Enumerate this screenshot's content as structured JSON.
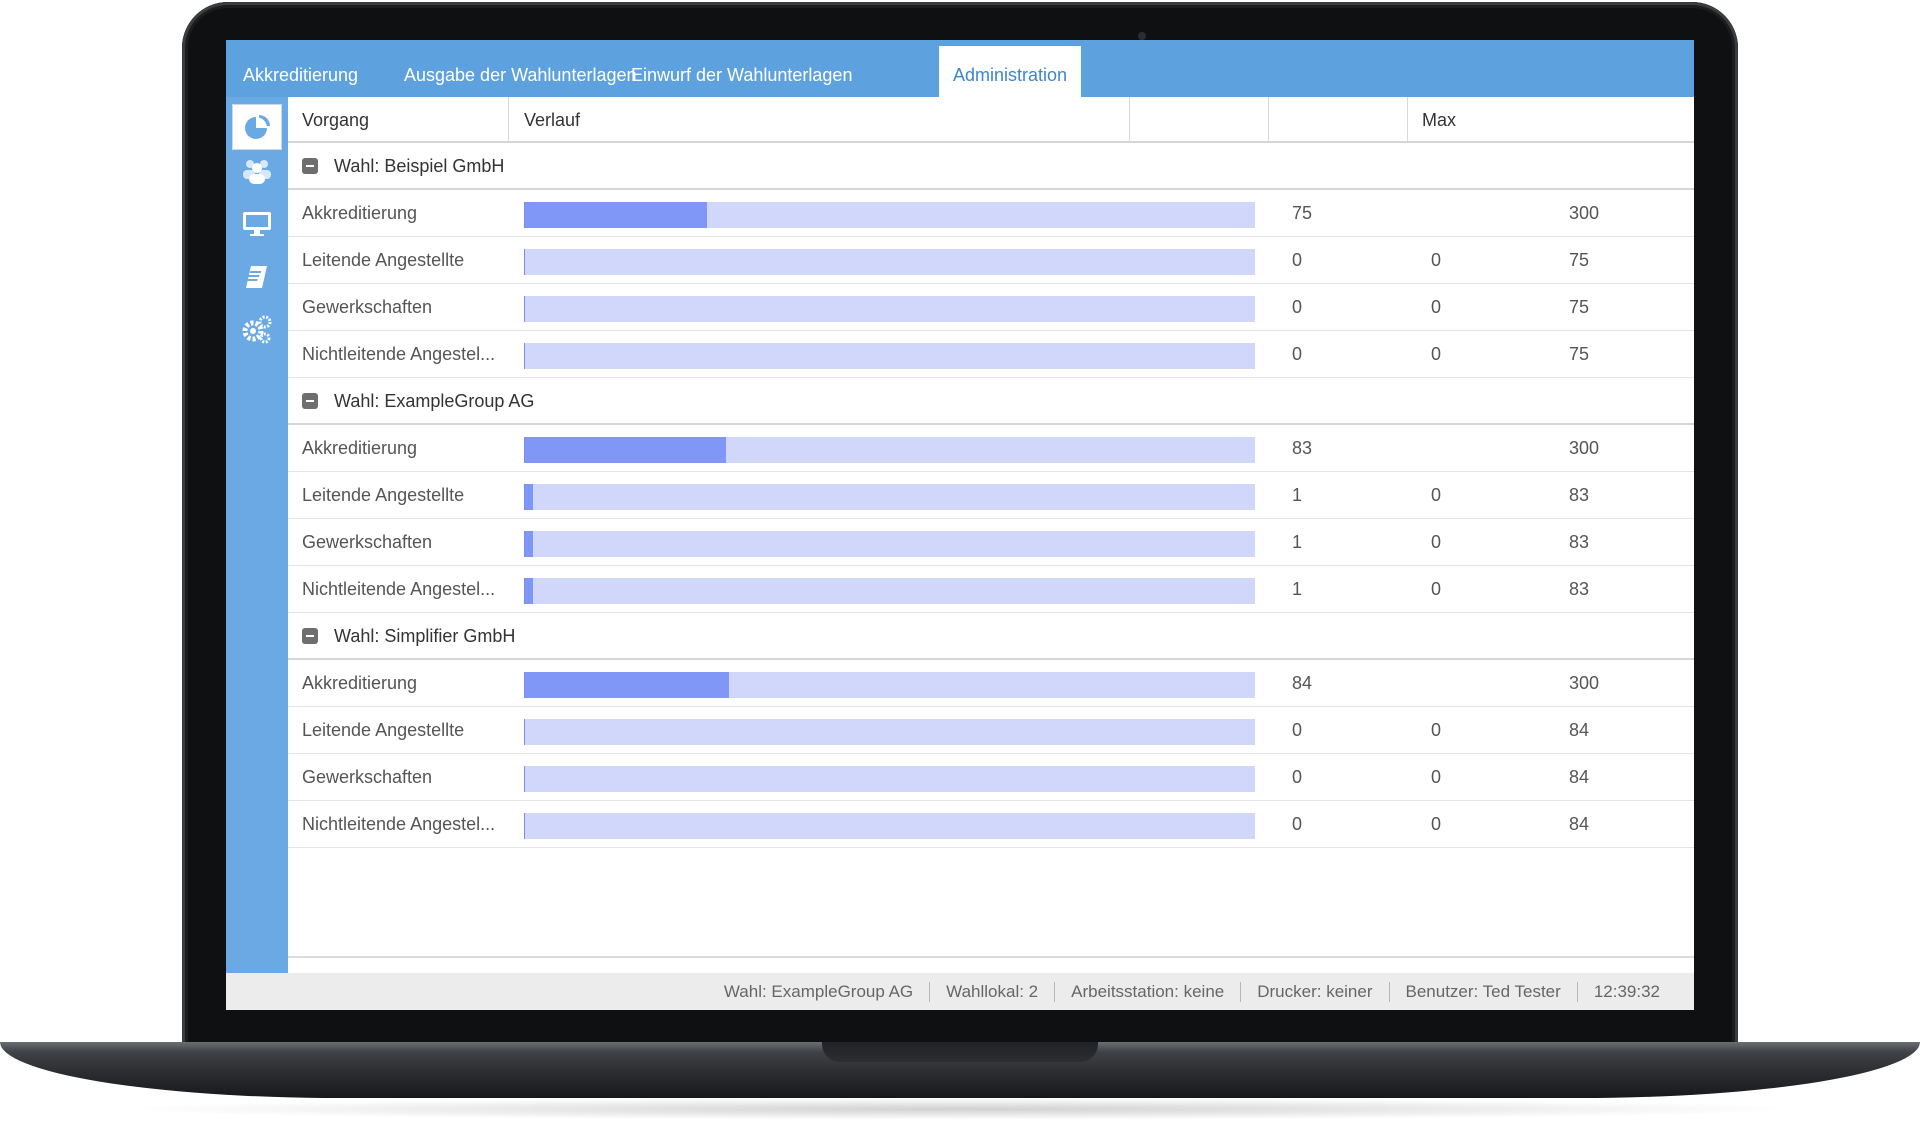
{
  "tabs": [
    {
      "label": "Akkreditierung",
      "active": false
    },
    {
      "label": "Ausgabe der Wahlunterlagen",
      "active": false
    },
    {
      "label": "Einwurf der Wahlunterlagen",
      "active": false
    },
    {
      "label": "Administration",
      "active": true
    }
  ],
  "sidebar": [
    {
      "icon": "pie-chart-icon",
      "active": true
    },
    {
      "icon": "users-icon",
      "active": false
    },
    {
      "icon": "monitor-icon",
      "active": false
    },
    {
      "icon": "book-icon",
      "active": false
    },
    {
      "icon": "gears-icon",
      "active": false
    }
  ],
  "table": {
    "headers": {
      "col1": "Vorgang",
      "col2": "Verlauf",
      "col3": "",
      "col4": "",
      "col5": "Max"
    },
    "groups": [
      {
        "label": "Wahl: Beispiel GmbH",
        "rows": [
          {
            "name": "Akkreditierung",
            "progress": 0.25,
            "v1": "75",
            "v2": "",
            "max": "300"
          },
          {
            "name": "Leitende Angestellte",
            "progress": 0.0,
            "v1": "0",
            "v2": "0",
            "max": "75"
          },
          {
            "name": "Gewerkschaften",
            "progress": 0.0,
            "v1": "0",
            "v2": "0",
            "max": "75"
          },
          {
            "name": "Nichtleitende Angestel...",
            "progress": 0.0,
            "v1": "0",
            "v2": "0",
            "max": "75"
          }
        ]
      },
      {
        "label": "Wahl: ExampleGroup AG",
        "rows": [
          {
            "name": "Akkreditierung",
            "progress": 0.277,
            "v1": "83",
            "v2": "",
            "max": "300"
          },
          {
            "name": "Leitende Angestellte",
            "progress": 0.012,
            "v1": "1",
            "v2": "0",
            "max": "83"
          },
          {
            "name": "Gewerkschaften",
            "progress": 0.012,
            "v1": "1",
            "v2": "0",
            "max": "83"
          },
          {
            "name": "Nichtleitende Angestel...",
            "progress": 0.012,
            "v1": "1",
            "v2": "0",
            "max": "83"
          }
        ]
      },
      {
        "label": "Wahl: Simplifier GmbH",
        "rows": [
          {
            "name": "Akkreditierung",
            "progress": 0.28,
            "v1": "84",
            "v2": "",
            "max": "300"
          },
          {
            "name": "Leitende Angestellte",
            "progress": 0.0,
            "v1": "0",
            "v2": "0",
            "max": "84"
          },
          {
            "name": "Gewerkschaften",
            "progress": 0.0,
            "v1": "0",
            "v2": "0",
            "max": "84"
          },
          {
            "name": "Nichtleitende Angestel...",
            "progress": 0.0,
            "v1": "0",
            "v2": "0",
            "max": "84"
          }
        ]
      }
    ]
  },
  "statusbar": [
    "Wahl: ExampleGroup AG",
    "Wahllokal: 2",
    "Arbeitsstation: keine",
    "Drucker: keiner",
    "Benutzer: Ted Tester",
    "12:39:32"
  ],
  "colors": {
    "tabbar": "#5ea1df",
    "sidebar": "#6aa9e4",
    "bar_track": "#d0d7fb",
    "bar_fill": "#8097f8",
    "active_tab_text": "#3d86cf"
  }
}
